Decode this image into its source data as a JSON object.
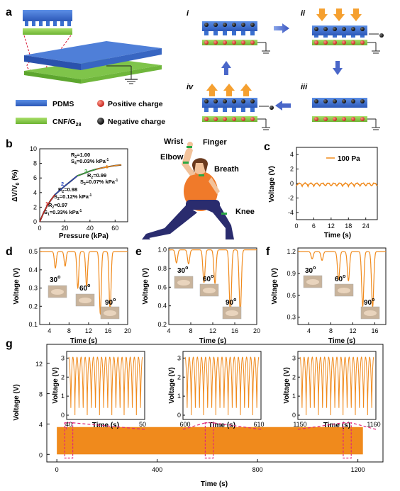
{
  "panel_letters": {
    "a": "a",
    "b": "b",
    "c": "c",
    "d": "d",
    "e": "e",
    "f": "f",
    "g": "g"
  },
  "legend": {
    "pdms": "PDMS",
    "cnf": "CNF/G",
    "cnf_sub": "28",
    "positive": "Positive charge",
    "negative": "Negative charge"
  },
  "colors": {
    "pdms": "#3a6fcf",
    "cnf": "#8ccf4a",
    "positive": "#d9302a",
    "negative": "#151515",
    "signal": "#f08a1c",
    "highlight": "#e0287a",
    "arrow": "#4a67c9",
    "press": "#f5a030"
  },
  "steps": {
    "i": "i",
    "ii": "ii",
    "iii": "iii",
    "iv": "iv"
  },
  "body_labels": {
    "wrist": "Wrist",
    "finger": "Finger",
    "elbow": "Elbow",
    "breath": "Breath",
    "knee": "Knee"
  },
  "b": {
    "ylabel": "ΔV/V",
    "ylabel_sub": "0",
    "ylabel_unit": " (%)",
    "xlabel": "Pressure (kPa)",
    "yticks": [
      "0",
      "2",
      "4",
      "6",
      "8",
      "10"
    ],
    "xticks": [
      "0",
      "20",
      "40",
      "60"
    ],
    "seg_labels": [
      "1",
      "2",
      "3",
      "4"
    ],
    "ann": {
      "r4": "R",
      "r4b": "2",
      "r4c": "=1.00",
      "s4": "S",
      "s4b": "4",
      "s4c": "=0.03% kPa",
      "r3": "R",
      "r3b": "2",
      "r3c": "=0.99",
      "s3": "S",
      "s3b": "3",
      "s3c": "=0.07% kPa",
      "r2": "R",
      "r2b": "2",
      "r2c": "=0.98",
      "s2": "S",
      "s2b": "2",
      "s2c": "=0.12% kPa",
      "r1": "R",
      "r1b": "2",
      "r1c": "=0.97",
      "s1": "S",
      "s1b": "1",
      "s1c": "=0.33% kPa",
      "sup": "-1"
    }
  },
  "c": {
    "ylabel": "Voltage (V)",
    "xlabel": "Time (s)",
    "legend": "100 Pa",
    "yticks": [
      "4",
      "2",
      "0",
      "-2",
      "-4"
    ],
    "xticks": [
      "0",
      "6",
      "12",
      "18",
      "24"
    ]
  },
  "d": {
    "ylabel": "Voltage (V)",
    "xlabel": "Time (s)",
    "yticks": [
      "0.5",
      "0.4",
      "0.3",
      "0.2",
      "0.1"
    ],
    "xticks": [
      "4",
      "8",
      "12",
      "16",
      "20"
    ],
    "angles": [
      "30",
      "60",
      "90"
    ],
    "deg": "o"
  },
  "e": {
    "ylabel": "Voltage (V)",
    "xlabel": "Time (s)",
    "yticks": [
      "1.0",
      "0.8",
      "0.6",
      "0.4",
      "0.2"
    ],
    "xticks": [
      "4",
      "8",
      "12",
      "16",
      "20"
    ],
    "angles": [
      "30",
      "60",
      "90"
    ],
    "deg": "o"
  },
  "f": {
    "ylabel": "Voltage (V)",
    "xlabel": "Time (s)",
    "yticks": [
      "1.2",
      "0.9",
      "0.6",
      "0.3"
    ],
    "xticks": [
      "4",
      "8",
      "12",
      "16"
    ],
    "angles": [
      "30",
      "60",
      "90"
    ],
    "deg": "o"
  },
  "g": {
    "ylabel": "Voltage (V)",
    "xlabel": "Time (s)",
    "yticks": [
      "12",
      "8",
      "4",
      "0"
    ],
    "xticks": [
      "0",
      "400",
      "800",
      "1200"
    ],
    "insets": [
      {
        "ylabel": "Voltage (V)",
        "xlabel": "Time (s)",
        "x0": "40",
        "x1": "50",
        "yticks": [
          "3",
          "2",
          "1",
          "0"
        ]
      },
      {
        "ylabel": "Voltage (V)",
        "xlabel": "Time (s)",
        "x0": "600",
        "x1": "610",
        "yticks": [
          "3",
          "2",
          "1",
          "0"
        ]
      },
      {
        "ylabel": "Voltage (V)",
        "xlabel": "Time (s)",
        "x0": "1150",
        "x1": "1160",
        "yticks": [
          "3",
          "2",
          "1",
          "0"
        ]
      }
    ]
  },
  "chart_data": [
    {
      "type": "line",
      "panel": "b",
      "xlabel": "Pressure (kPa)",
      "ylabel": "ΔV/V0 (%)",
      "xlim": [
        0,
        70
      ],
      "ylim": [
        0,
        10
      ],
      "series": [
        {
          "x": [
            0,
            3,
            6,
            9,
            12,
            16,
            20,
            25,
            30,
            35,
            40,
            45,
            50,
            55,
            60,
            65
          ],
          "values": [
            0,
            1.2,
            2.2,
            3.0,
            3.7,
            4.3,
            4.9,
            5.6,
            6.3,
            6.6,
            6.95,
            7.2,
            7.4,
            7.55,
            7.7,
            7.8
          ]
        }
      ]
    },
    {
      "type": "line",
      "panel": "c",
      "xlabel": "Time (s)",
      "ylabel": "Voltage (V)",
      "xlim": [
        0,
        28
      ],
      "ylim": [
        -5,
        5
      ],
      "series": [
        {
          "name": "100 Pa",
          "x": [
            0,
            2,
            4,
            6,
            8,
            10,
            12,
            14,
            16,
            18,
            20,
            22,
            24,
            26,
            28
          ],
          "values": [
            -0.3,
            0,
            -0.3,
            0,
            -0.3,
            0,
            -0.3,
            0,
            -0.3,
            0,
            -0.3,
            0,
            -0.3,
            0,
            -0.3
          ]
        }
      ]
    },
    {
      "type": "line",
      "panel": "d",
      "xlabel": "Time (s)",
      "ylabel": "Voltage (V)",
      "xlim": [
        2,
        20
      ],
      "ylim": [
        0.1,
        0.52
      ],
      "baseline": 0.5,
      "dips": [
        {
          "t": 5.2,
          "v": 0.41
        },
        {
          "t": 7.2,
          "v": 0.42
        },
        {
          "t": 9.8,
          "v": 0.3
        },
        {
          "t": 11.6,
          "v": 0.31
        },
        {
          "t": 14.4,
          "v": 0.16
        },
        {
          "t": 16.4,
          "v": 0.17
        }
      ]
    },
    {
      "type": "line",
      "panel": "e",
      "xlabel": "Time (s)",
      "ylabel": "Voltage (V)",
      "xlim": [
        4,
        20
      ],
      "ylim": [
        0.2,
        1.02
      ],
      "baseline": 1.0,
      "dips": [
        {
          "t": 5.4,
          "v": 0.86
        },
        {
          "t": 7.6,
          "v": 0.85
        },
        {
          "t": 10.4,
          "v": 0.65
        },
        {
          "t": 12.4,
          "v": 0.64
        },
        {
          "t": 15.2,
          "v": 0.3
        },
        {
          "t": 17.0,
          "v": 0.32
        }
      ]
    },
    {
      "type": "line",
      "panel": "f",
      "xlabel": "Time (s)",
      "ylabel": "Voltage (V)",
      "xlim": [
        2,
        18
      ],
      "ylim": [
        0.2,
        1.25
      ],
      "baseline": 1.2,
      "dips": [
        {
          "t": 4.6,
          "v": 1.1
        },
        {
          "t": 6.4,
          "v": 1.08
        },
        {
          "t": 9.4,
          "v": 0.82
        },
        {
          "t": 11.2,
          "v": 0.8
        },
        {
          "t": 13.8,
          "v": 0.45
        },
        {
          "t": 15.6,
          "v": 0.44
        }
      ]
    },
    {
      "type": "line",
      "panel": "g",
      "xlabel": "Time (s)",
      "ylabel": "Voltage (V)",
      "xlim": [
        -40,
        1300
      ],
      "ylim": [
        -1,
        14.5
      ],
      "series": [
        {
          "x": [
            0,
            1220
          ],
          "values": [
            0,
            3.6
          ]
        }
      ],
      "insets": [
        {
          "xlim": [
            40,
            50
          ],
          "ylim": [
            0,
            3.2
          ],
          "cycles": 18
        },
        {
          "xlim": [
            600,
            610
          ],
          "ylim": [
            0,
            3.2
          ],
          "cycles": 18
        },
        {
          "xlim": [
            1150,
            1160
          ],
          "ylim": [
            0,
            3.2
          ],
          "cycles": 18
        }
      ]
    }
  ]
}
